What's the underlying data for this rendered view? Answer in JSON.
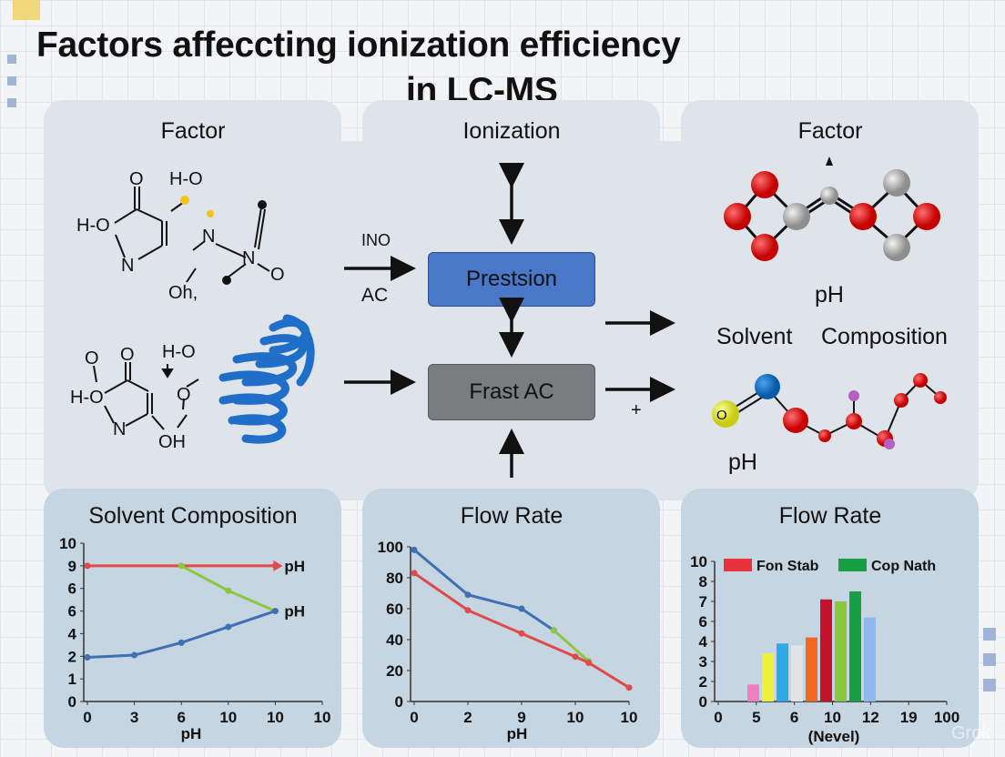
{
  "title": {
    "line1": "Factors affeccting ionization efficiency",
    "line2": "in LC-MS"
  },
  "panels": {
    "top_left": {
      "header": "Factor",
      "molecule1_atoms": [
        "O",
        "H-O",
        "H-O",
        "N",
        "N",
        "N",
        "O",
        "Oh,"
      ],
      "molecule2_atoms": [
        "O",
        "O",
        "H-O",
        "H-O",
        "N",
        "O",
        "OH"
      ]
    },
    "top_middle": {
      "header": "Ionization",
      "arrow_label_top": "INO",
      "arrow_label_bottom": "AC",
      "box_top": "Prestsion",
      "box_bottom": "Frast AC",
      "plus": "+"
    },
    "top_right": {
      "header": "Factor",
      "label_ph_1": "pH",
      "label_solvent": "Solvent",
      "label_composition": "Composition",
      "label_ph_2": "pH",
      "atom_label": "O"
    }
  },
  "colors": {
    "box_top": "#4a78c9",
    "box_bottom": "#7a7d80",
    "panel_top": "#dfe3ea",
    "panel_bottom": "#c6d5e2",
    "atom_red": "#e01616",
    "atom_gray": "#b8b8b8",
    "helix": "#1f6fc9"
  },
  "chart_data": [
    {
      "type": "line",
      "title": "Solvent Composition",
      "xlabel": "pH",
      "x_tick_labels": [
        "0",
        "3",
        "6",
        "10",
        "10",
        "10"
      ],
      "y_tick_labels": [
        "0",
        "1",
        "2",
        "4",
        "6",
        "6",
        "9",
        "10"
      ],
      "series": [
        {
          "color": "#e04a4a",
          "points": [
            [
              0,
              6
            ],
            [
              4,
              6
            ]
          ],
          "end_label": "pH",
          "arrow": true
        },
        {
          "color": "#8cc63f",
          "points": [
            [
              2,
              6
            ],
            [
              3,
              4.9
            ],
            [
              4,
              4
            ]
          ]
        },
        {
          "color": "#3f6fb5",
          "points": [
            [
              0,
              1.95
            ],
            [
              1,
              2.05
            ],
            [
              2,
              2.6
            ],
            [
              3,
              3.3
            ],
            [
              4,
              4
            ]
          ],
          "end_label": "pH"
        }
      ],
      "grid": false
    },
    {
      "type": "line",
      "title": "Flow Rate",
      "xlabel": "pH",
      "x_tick_labels": [
        "0",
        "2",
        "9",
        "10",
        "10"
      ],
      "y_tick_labels": [
        "0",
        "20",
        "40",
        "60",
        "80",
        "100"
      ],
      "ylim": [
        0,
        100
      ],
      "series": [
        {
          "color": "#3f6fb5",
          "points": [
            [
              0,
              98
            ],
            [
              1,
              69
            ],
            [
              2,
              60
            ],
            [
              2.6,
              46
            ]
          ]
        },
        {
          "color": "#8cc63f",
          "points": [
            [
              2.6,
              46
            ],
            [
              3.25,
              26
            ]
          ]
        },
        {
          "color": "#e04a4a",
          "points": [
            [
              0,
              83
            ],
            [
              1,
              59
            ],
            [
              2,
              44
            ],
            [
              3,
              29
            ],
            [
              3.25,
              25
            ],
            [
              4,
              9
            ]
          ]
        }
      ],
      "grid": false
    },
    {
      "type": "bar",
      "title": "Flow Rate",
      "xlabel": "(Nevel)",
      "x_tick_labels": [
        "0",
        "5",
        "6",
        "10",
        "12",
        "19",
        "100"
      ],
      "y_tick_labels": [
        "0",
        "2",
        "3",
        "4",
        "6",
        "7",
        "8",
        "10"
      ],
      "legend": [
        {
          "name": "Fon Stab",
          "color": "#e8323c"
        },
        {
          "name": "Cop Nath",
          "color": "#16a043"
        }
      ],
      "legend_position": "top",
      "bars": [
        {
          "value": 1.7,
          "color": "#ee7fc0"
        },
        {
          "value": 3.4,
          "color": "#eef03a"
        },
        {
          "value": 3.9,
          "color": "#2ea9e6"
        },
        {
          "value": 3.8,
          "color": "#e3e3e3"
        },
        {
          "value": 4.4,
          "color": "#f26a21"
        },
        {
          "value": 7.1,
          "color": "#c4122a"
        },
        {
          "value": 7.0,
          "color": "#8cc63f"
        },
        {
          "value": 7.5,
          "color": "#16a043"
        },
        {
          "value": 6.2,
          "color": "#8fb8ee"
        }
      ],
      "grid": false
    }
  ],
  "watermark": "Grok"
}
